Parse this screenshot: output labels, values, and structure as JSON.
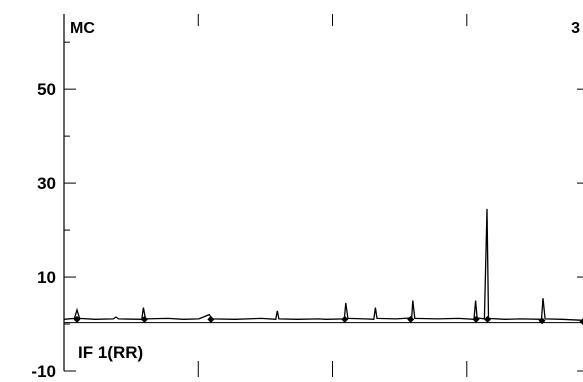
{
  "chart_data": {
    "type": "line",
    "corner_labels": {
      "top_left": "MC",
      "top_right": "3",
      "bottom_left": "IF 1(RR)"
    },
    "xlabel": "",
    "ylabel": "",
    "ylim": [
      -10,
      66
    ],
    "y_ticks": [
      {
        "value": 50,
        "label": "50"
      },
      {
        "value": 30,
        "label": "30"
      },
      {
        "value": 10,
        "label": "10"
      },
      {
        "value": -10,
        "label": "-10"
      }
    ],
    "y_minor_ticks": [
      60,
      40,
      20,
      0
    ],
    "xlim": [
      0,
      1
    ],
    "x_major_ticks": [
      0,
      0.2587,
      0.5174,
      0.7761
    ],
    "series": [
      {
        "values": [
          [
            0.0,
            1.0
          ],
          [
            0.02,
            1.2
          ],
          [
            0.025,
            3.0
          ],
          [
            0.03,
            1.2
          ],
          [
            0.06,
            1.0
          ],
          [
            0.095,
            1.1
          ],
          [
            0.1,
            1.5
          ],
          [
            0.105,
            1.1
          ],
          [
            0.15,
            1.0
          ],
          [
            0.153,
            3.5
          ],
          [
            0.157,
            1.1
          ],
          [
            0.2,
            1.2
          ],
          [
            0.23,
            1.0
          ],
          [
            0.26,
            1.1
          ],
          [
            0.28,
            2.0
          ],
          [
            0.285,
            1.1
          ],
          [
            0.33,
            1.0
          ],
          [
            0.38,
            1.2
          ],
          [
            0.408,
            1.0
          ],
          [
            0.411,
            2.8
          ],
          [
            0.414,
            1.1
          ],
          [
            0.45,
            1.0
          ],
          [
            0.49,
            1.1
          ],
          [
            0.505,
            1.0
          ],
          [
            0.54,
            1.1
          ],
          [
            0.543,
            4.5
          ],
          [
            0.547,
            1.2
          ],
          [
            0.58,
            1.1
          ],
          [
            0.597,
            1.0
          ],
          [
            0.6,
            3.5
          ],
          [
            0.603,
            1.2
          ],
          [
            0.64,
            1.1
          ],
          [
            0.67,
            1.3
          ],
          [
            0.672,
            5.0
          ],
          [
            0.676,
            1.2
          ],
          [
            0.72,
            1.1
          ],
          [
            0.76,
            1.2
          ],
          [
            0.79,
            1.0
          ],
          [
            0.793,
            5.0
          ],
          [
            0.796,
            1.3
          ],
          [
            0.81,
            1.1
          ],
          [
            0.815,
            24.5
          ],
          [
            0.818,
            1.2
          ],
          [
            0.85,
            1.0
          ],
          [
            0.88,
            1.1
          ],
          [
            0.92,
            1.0
          ],
          [
            0.923,
            5.5
          ],
          [
            0.927,
            1.1
          ],
          [
            0.96,
            1.0
          ],
          [
            1.0,
            0.8
          ]
        ]
      },
      {
        "values": [
          [
            0.0,
            0.3
          ],
          [
            1.0,
            0.3
          ]
        ]
      }
    ],
    "markers": [
      [
        0.025,
        1.0
      ],
      [
        0.155,
        1.0
      ],
      [
        0.283,
        1.0
      ],
      [
        0.541,
        1.0
      ],
      [
        0.668,
        1.0
      ],
      [
        0.794,
        1.0
      ],
      [
        0.816,
        1.0
      ],
      [
        0.921,
        0.7
      ],
      [
        1.0,
        0.5
      ]
    ],
    "grid": false,
    "legend": "none"
  }
}
